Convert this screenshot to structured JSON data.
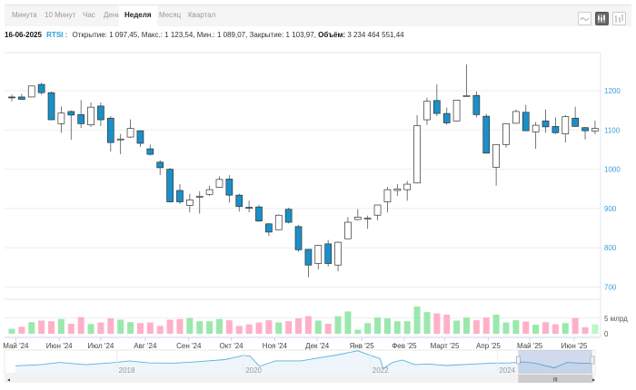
{
  "tabs": [
    "Минута",
    "10 Минут",
    "Час",
    "День",
    "Неделя",
    "Месяц",
    "Квартал"
  ],
  "active_tab": "Неделя",
  "tools": [
    {
      "name": "line-chart-icon",
      "active": false
    },
    {
      "name": "candlestick-icon",
      "active": true
    },
    {
      "name": "ohlc-bars-icon",
      "active": false
    }
  ],
  "info": {
    "date": "16-06-2025",
    "symbol": "RTSI :",
    "ohlc": "Открытие: 1 097,45, Макс.: 1 123,54, Мин.: 1 089,07, Закрытие: 1 103,97,",
    "volume_label": "Объём:",
    "volume_value": "3 234 464 551,44"
  },
  "colors": {
    "down": "#1a8fc8",
    "up": "#ffffff",
    "vol_pink": "#ffb0c8",
    "vol_green": "#9be8ad",
    "vol_last": "#bff5c8",
    "axis": "#3aa0d8",
    "nav_line": "#5ab0e0"
  },
  "chart_data": {
    "type": "candlestick",
    "ylim": [
      680,
      1280
    ],
    "yticks": [
      700,
      800,
      900,
      1000,
      1100,
      1200
    ],
    "ytick_labels": [
      "700",
      "800",
      "900",
      "1000",
      "1100",
      "1200"
    ],
    "candles_ohlc": [
      [
        1184,
        1190,
        1173,
        1182
      ],
      [
        1184,
        1192,
        1177,
        1178
      ],
      [
        1184,
        1212,
        1183,
        1212
      ],
      [
        1216,
        1220,
        1190,
        1195
      ],
      [
        1195,
        1198,
        1125,
        1126
      ],
      [
        1116,
        1160,
        1093,
        1143
      ],
      [
        1147,
        1150,
        1075,
        1138
      ],
      [
        1139,
        1176,
        1105,
        1116
      ],
      [
        1113,
        1170,
        1108,
        1158
      ],
      [
        1161,
        1170,
        1110,
        1126
      ],
      [
        1130,
        1135,
        1045,
        1068
      ],
      [
        1075,
        1090,
        1038,
        1077
      ],
      [
        1082,
        1127,
        1080,
        1104
      ],
      [
        1098,
        1098,
        1057,
        1066
      ],
      [
        1052,
        1063,
        1035,
        1038
      ],
      [
        1018,
        1023,
        985,
        1004
      ],
      [
        1000,
        1003,
        915,
        917
      ],
      [
        946,
        962,
        912,
        917
      ],
      [
        908,
        937,
        890,
        922
      ],
      [
        930,
        944,
        887,
        931
      ],
      [
        936,
        958,
        932,
        948
      ],
      [
        954,
        982,
        954,
        974
      ],
      [
        975,
        985,
        915,
        934
      ],
      [
        934,
        938,
        892,
        905
      ],
      [
        903,
        920,
        890,
        902
      ],
      [
        904,
        910,
        867,
        868
      ],
      [
        861,
        863,
        830,
        840
      ],
      [
        846,
        885,
        845,
        883
      ],
      [
        898,
        902,
        862,
        865
      ],
      [
        854,
        858,
        790,
        795
      ],
      [
        796,
        797,
        725,
        756
      ],
      [
        760,
        806,
        745,
        806
      ],
      [
        810,
        820,
        752,
        760
      ],
      [
        756,
        816,
        740,
        814
      ],
      [
        823,
        878,
        822,
        865
      ],
      [
        872,
        898,
        870,
        878
      ],
      [
        875,
        882,
        848,
        875.5
      ],
      [
        883,
        909,
        870,
        909
      ],
      [
        917,
        955,
        890,
        948
      ],
      [
        946,
        962,
        932,
        950
      ],
      [
        948,
        970,
        920,
        962
      ],
      [
        965,
        1138,
        964,
        1111
      ],
      [
        1126,
        1182,
        1113,
        1173
      ],
      [
        1175,
        1216,
        1135,
        1142
      ],
      [
        1142,
        1157,
        1113,
        1118
      ],
      [
        1123,
        1176,
        1122,
        1176
      ],
      [
        1187,
        1267,
        1186,
        1187.5
      ],
      [
        1188,
        1198,
        1132,
        1139
      ],
      [
        1135,
        1141,
        1040,
        1041
      ],
      [
        1005,
        1063,
        958,
        1063
      ],
      [
        1063,
        1116,
        1055,
        1116
      ],
      [
        1117,
        1152,
        1116,
        1147
      ],
      [
        1145,
        1164,
        1098,
        1098
      ],
      [
        1095,
        1120,
        1052,
        1112
      ],
      [
        1123,
        1152,
        1093,
        1108
      ],
      [
        1109,
        1132,
        1090,
        1093
      ],
      [
        1090,
        1138,
        1068,
        1134
      ],
      [
        1130,
        1159,
        1108,
        1109
      ],
      [
        1106,
        1108,
        1076,
        1098
      ],
      [
        1097.45,
        1123.54,
        1089.07,
        1103.97
      ]
    ],
    "volume_unit_label": "5 млрд",
    "volume_zero_label": "0",
    "volume_ylim": [
      0,
      10
    ],
    "volumes_bln": [
      1.6,
      2.2,
      3.7,
      4.2,
      4.0,
      4.7,
      3.2,
      5.3,
      3.1,
      3.6,
      4.9,
      4.5,
      3.7,
      3.4,
      3.6,
      2.5,
      4.5,
      4.7,
      5.0,
      4.0,
      4.0,
      4.7,
      4.3,
      2.5,
      3.0,
      3.6,
      4.3,
      3.6,
      4.0,
      4.9,
      5.6,
      4.2,
      3.2,
      5.6,
      7.1,
      1.3,
      3.4,
      5.2,
      4.9,
      4.0,
      4.0,
      8.7,
      6.9,
      6.5,
      6.1,
      4.2,
      5.2,
      4.3,
      5.2,
      6.1,
      3.6,
      4.3,
      3.9,
      2.9,
      3.7,
      3.0,
      3.4,
      5.0,
      2.1,
      3.0
    ],
    "volume_colors": [
      "g",
      "p",
      "g",
      "p",
      "p",
      "g",
      "p",
      "p",
      "g",
      "p",
      "p",
      "g",
      "g",
      "p",
      "p",
      "p",
      "p",
      "p",
      "g",
      "g",
      "g",
      "g",
      "p",
      "p",
      "p",
      "p",
      "p",
      "g",
      "p",
      "p",
      "p",
      "g",
      "p",
      "g",
      "g",
      "g",
      "g",
      "g",
      "g",
      "g",
      "g",
      "g",
      "g",
      "p",
      "p",
      "g",
      "g",
      "p",
      "p",
      "g",
      "g",
      "g",
      "p",
      "g",
      "p",
      "p",
      "g",
      "p",
      "p",
      "l"
    ],
    "xticks": [
      {
        "at": 0.4,
        "label": "Май '24"
      },
      {
        "at": 4.8,
        "label": "Июн '24"
      },
      {
        "at": 9.0,
        "label": "Июл '24"
      },
      {
        "at": 13.5,
        "label": "Авг '24"
      },
      {
        "at": 17.9,
        "label": "Сен '24"
      },
      {
        "at": 22.2,
        "label": "Окт '24"
      },
      {
        "at": 26.6,
        "label": "Ноя '24"
      },
      {
        "at": 30.9,
        "label": "Дек '24"
      },
      {
        "at": 35.4,
        "label": "Янв '25"
      },
      {
        "at": 39.7,
        "label": "Фев '25"
      },
      {
        "at": 43.8,
        "label": "Март '25"
      },
      {
        "at": 48.2,
        "label": "Апр '25"
      },
      {
        "at": 52.4,
        "label": "Май '25"
      },
      {
        "at": 56.9,
        "label": "Июн '25"
      }
    ],
    "navigator": {
      "x_range": [
        2016.4,
        2025.5
      ],
      "y_range": [
        600,
        2000
      ],
      "points": [
        [
          2016.4,
          930
        ],
        [
          2016.8,
          1000
        ],
        [
          2017.1,
          1150
        ],
        [
          2017.5,
          1000
        ],
        [
          2017.9,
          1120
        ],
        [
          2018.2,
          1250
        ],
        [
          2018.5,
          1120
        ],
        [
          2018.9,
          1100
        ],
        [
          2019.3,
          1200
        ],
        [
          2019.7,
          1330
        ],
        [
          2020.0,
          1600
        ],
        [
          2020.1,
          1550
        ],
        [
          2020.25,
          900
        ],
        [
          2020.5,
          1250
        ],
        [
          2020.9,
          1250
        ],
        [
          2021.2,
          1450
        ],
        [
          2021.5,
          1650
        ],
        [
          2021.8,
          1900
        ],
        [
          2022.0,
          1600
        ],
        [
          2022.15,
          1400
        ],
        [
          2022.2,
          750
        ],
        [
          2022.35,
          1150
        ],
        [
          2022.5,
          1300
        ],
        [
          2022.7,
          1000
        ],
        [
          2022.9,
          1050
        ],
        [
          2023.2,
          950
        ],
        [
          2023.5,
          1020
        ],
        [
          2023.9,
          1100
        ],
        [
          2024.2,
          1120
        ],
        [
          2024.4,
          1180
        ],
        [
          2024.6,
          1100
        ],
        [
          2024.9,
          800
        ],
        [
          2025.1,
          1150
        ],
        [
          2025.3,
          1100
        ],
        [
          2025.5,
          1100
        ]
      ],
      "year_labels": [
        {
          "at": 2018,
          "label": "2018"
        },
        {
          "at": 2020,
          "label": "2020"
        },
        {
          "at": 2022,
          "label": "2022"
        },
        {
          "at": 2024,
          "label": "2024"
        }
      ],
      "selection": [
        2024.33,
        2025.5
      ]
    }
  }
}
